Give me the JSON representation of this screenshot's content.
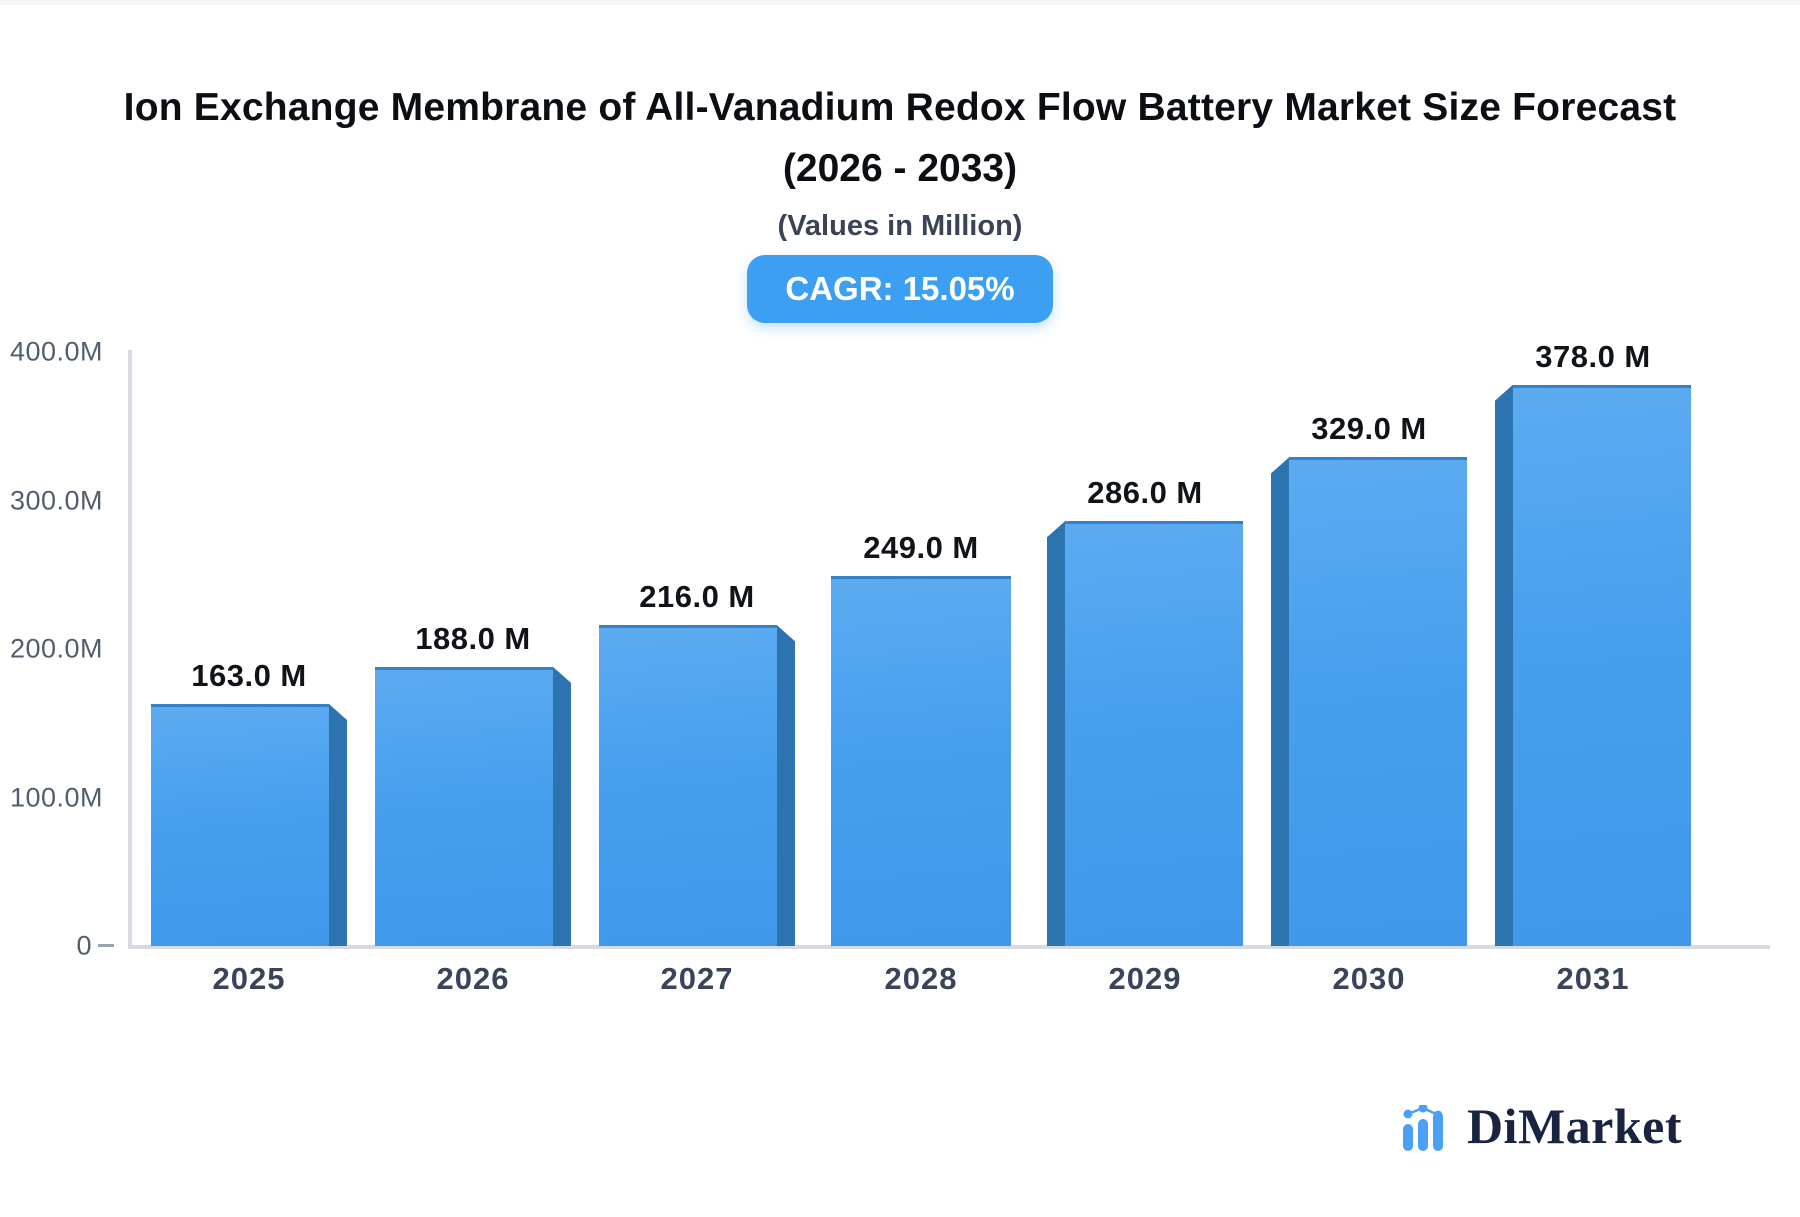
{
  "header": {
    "title_line1": "Ion Exchange Membrane of All-Vanadium Redox Flow Battery Market Size Forecast",
    "title_line2": "(2026 - 2033)",
    "subtitle": "(Values in Million)",
    "cagr_label": "CAGR: 15.05%"
  },
  "chart_data": {
    "type": "bar",
    "title": "Ion Exchange Membrane of All-Vanadium Redox Flow Battery Market Size Forecast (2026 - 2033)",
    "categories": [
      "2025",
      "2026",
      "2027",
      "2028",
      "2029",
      "2030",
      "2031"
    ],
    "values": [
      163,
      188,
      216,
      249,
      286,
      329,
      378
    ],
    "value_labels": [
      "163.0 M",
      "188.0 M",
      "216.0 M",
      "249.0 M",
      "286.0 M",
      "329.0 M",
      "378.0 M"
    ],
    "xlabel": "",
    "ylabel": "",
    "ylim": [
      0,
      400
    ],
    "y_ticks": [
      {
        "label": "400.0M",
        "value": 400
      },
      {
        "label": "300.0M",
        "value": 300
      },
      {
        "label": "200.0M",
        "value": 200
      },
      {
        "label": "100.0M",
        "value": 100
      },
      {
        "label": "0",
        "value": 0
      }
    ],
    "grid": false,
    "legend": false,
    "style_3d": "side panels face the center bar",
    "colors": {
      "bar_top": "#5cabf0",
      "bar_bottom": "#3f98ec",
      "bar_side": "#2d73b0",
      "axis": "#d8dae1",
      "tick_text": "#525e6f",
      "value_text": "#101419",
      "category_text": "#39445a",
      "badge_bg": "#3d9ff2"
    }
  },
  "footer": {
    "logo_text": "DiMarket"
  }
}
